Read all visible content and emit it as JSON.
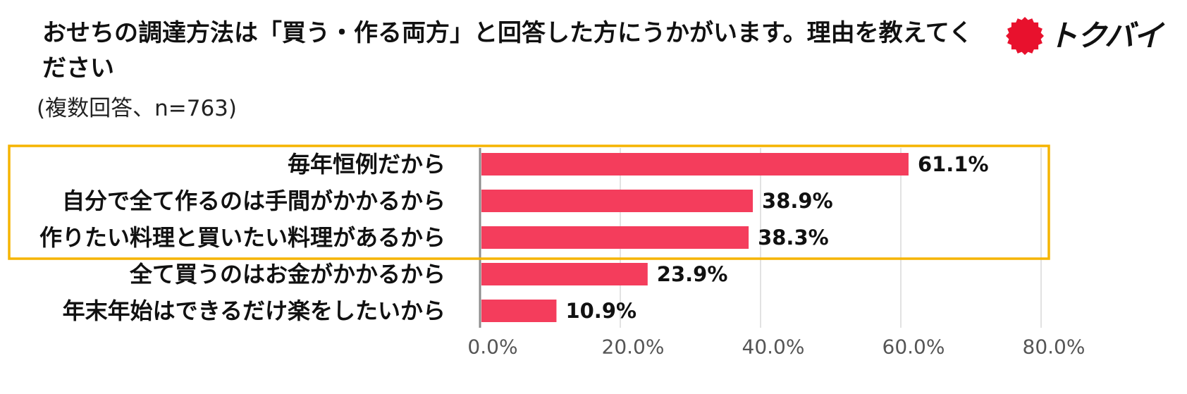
{
  "header": {
    "title": "おせちの調達方法は「買う・作る両方」と回答した方にうかがいます。理由を教えてください",
    "subtitle": "(複数回答、n=763)"
  },
  "logo": {
    "text": "トクバイ",
    "icon": "red-sun-icon",
    "color": "#e8112d"
  },
  "highlight": {
    "color": "#f5b400",
    "rows": 3
  },
  "chart_data": {
    "type": "bar",
    "orientation": "horizontal",
    "categories": [
      "毎年恒例だから",
      "自分で全て作るのは手間がかかるから",
      "作りたい料理と買いたい料理があるから",
      "全て買うのはお金がかかるから",
      "年末年始はできるだけ楽をしたいから"
    ],
    "values": [
      61.1,
      38.9,
      38.3,
      23.9,
      10.9
    ],
    "value_labels": [
      "61.1%",
      "38.9%",
      "38.3%",
      "23.9%",
      "10.9%"
    ],
    "xlim": [
      0,
      80
    ],
    "ticks": [
      0,
      20,
      40,
      60,
      80
    ],
    "tick_labels": [
      "0.0%",
      "20.0%",
      "40.0%",
      "60.0%",
      "80.0%"
    ],
    "bar_color": "#f43d5c",
    "grid": true
  }
}
